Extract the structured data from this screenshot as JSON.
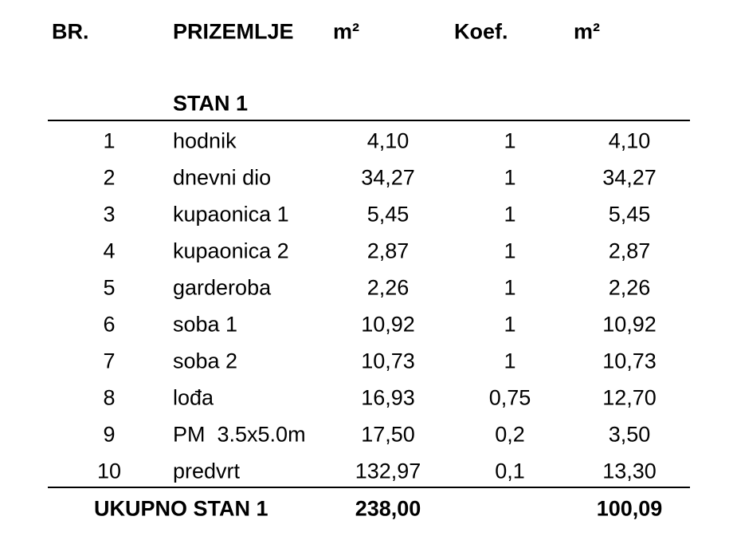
{
  "header": [
    "BR.",
    "PRIZEMLJE",
    "m²",
    "Koef.",
    "m²"
  ],
  "section": "STAN 1",
  "table": {
    "rows": [
      [
        "1",
        "hodnik",
        "4,10",
        "1",
        "4,10"
      ],
      [
        "2",
        "dnevni dio",
        "34,27",
        "1",
        "34,27"
      ],
      [
        "3",
        "kupaonica 1",
        "5,45",
        "1",
        "5,45"
      ],
      [
        "4",
        "kupaonica 2",
        "2,87",
        "1",
        "2,87"
      ],
      [
        "5",
        "garderoba",
        "2,26",
        "1",
        "2,26"
      ],
      [
        "6",
        "soba 1",
        "10,92",
        "1",
        "10,92"
      ],
      [
        "7",
        "soba 2",
        "10,73",
        "1",
        "10,73"
      ],
      [
        "8",
        "lođa",
        "16,93",
        "0,75",
        "12,70"
      ],
      [
        "9",
        "PM  3.5x5.0m",
        "17,50",
        "0,2",
        "3,50"
      ],
      [
        "10",
        "predvrt",
        "132,97",
        "0,1",
        "13,30"
      ]
    ]
  },
  "footer": {
    "label": "UKUPNO STAN 1",
    "area": "238,00",
    "total": "100,09"
  }
}
